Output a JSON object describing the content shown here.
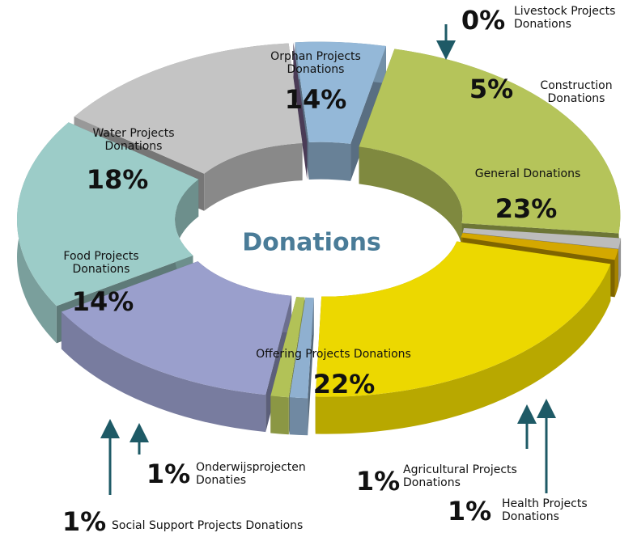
{
  "chart_data": {
    "type": "donut",
    "title": "Donations",
    "categories": [
      "Livestock Projects Donations",
      "Construction Donations",
      "General Donations",
      "Health Projects Donations",
      "Agricultural Projects Donations",
      "Offering Projects Donations",
      "Onderwijsprojecten Donaties",
      "Social Support Projects Donations",
      "Food Projects Donations",
      "Water Projects Donations",
      "Orphan Projects Donations"
    ],
    "values": [
      0,
      5,
      23,
      1,
      1,
      22,
      1,
      1,
      14,
      18,
      14
    ],
    "value_labels": [
      "0%",
      "5%",
      "23%",
      "1%",
      "1%",
      "22%",
      "1%",
      "1%",
      "14%",
      "18%",
      "14%"
    ],
    "colors": [
      "#7b6390",
      "#94b8d8",
      "#b5c45a",
      "#bcbcbc",
      "#d4a800",
      "#ecd800",
      "#8fb0d0",
      "#b2c257",
      "#9a9fcc",
      "#9cccc8",
      "#c4c4c4"
    ]
  }
}
